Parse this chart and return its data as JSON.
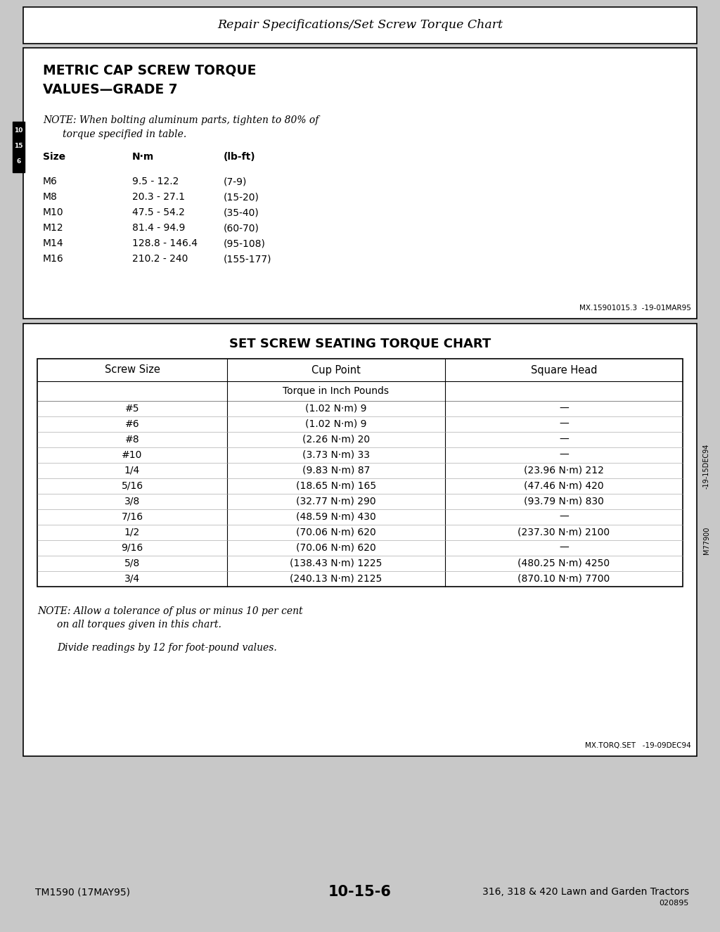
{
  "page_title": "Repair Specifications/Set Screw Torque Chart",
  "section1_title_line1": "METRIC CAP SCREW TORQUE",
  "section1_title_line2": "VALUES—GRADE 7",
  "section1_note_line1": "NOTE: When bolting aluminum parts, tighten to 80% of",
  "section1_note_line2": "       torque specified in table.",
  "section1_col_headers": [
    "Size",
    "N·m",
    "(lb-ft)"
  ],
  "section1_data": [
    [
      "M6",
      "9.5 - 12.2",
      "(7-9)"
    ],
    [
      "M8",
      "20.3 - 27.1",
      "(15-20)"
    ],
    [
      "M10",
      "47.5 - 54.2",
      "(35-40)"
    ],
    [
      "M12",
      "81.4 - 94.9",
      "(60-70)"
    ],
    [
      "M14",
      "128.8 - 146.4",
      "(95-108)"
    ],
    [
      "M16",
      "210.2 - 240",
      "(155-177)"
    ]
  ],
  "section1_footer": "MX.15901015.3  -19-01MAR95",
  "section2_title": "SET SCREW SEATING TORQUE CHART",
  "section2_col_headers": [
    "Screw Size",
    "Cup Point",
    "Square Head"
  ],
  "section2_subheader": "Torque in Inch Pounds",
  "section2_data": [
    [
      "#5",
      "(1.02 N·m) 9",
      "—"
    ],
    [
      "#6",
      "(1.02 N·m) 9",
      "—"
    ],
    [
      "#8",
      "(2.26 N·m) 20",
      "—"
    ],
    [
      "#10",
      "(3.73 N·m) 33",
      "—"
    ],
    [
      "1/4",
      "(9.83 N·m) 87",
      "(23.96 N·m) 212"
    ],
    [
      "5/16",
      "(18.65 N·m) 165",
      "(47.46 N·m) 420"
    ],
    [
      "3/8",
      "(32.77 N·m) 290",
      "(93.79 N·m) 830"
    ],
    [
      "7/16",
      "(48.59 N·m) 430",
      "—"
    ],
    [
      "1/2",
      "(70.06 N·m) 620",
      "(237.30 N·m) 2100"
    ],
    [
      "9/16",
      "(70.06 N·m) 620",
      "—"
    ],
    [
      "5/8",
      "(138.43 N·m) 1225",
      "(480.25 N·m) 4250"
    ],
    [
      "3/4",
      "(240.13 N·m) 2125",
      "(870.10 N·m) 7700"
    ]
  ],
  "section2_note_line1": "NOTE: Allow a tolerance of plus or minus 10 per cent",
  "section2_note_line2": "       on all torques given in this chart.",
  "section2_note_line3": "       Divide readings by 12 for foot-pound values.",
  "section2_footer": "MX.TORQ.SET   -19-09DEC94",
  "side_label_top": "-19-15DEC94",
  "side_label_bot": "M77900",
  "footer_left": "TM1590 (17MAY95)",
  "footer_center": "10-15-6",
  "footer_right": "316, 318 & 420 Lawn and Garden Tractors",
  "footer_code": "020895"
}
